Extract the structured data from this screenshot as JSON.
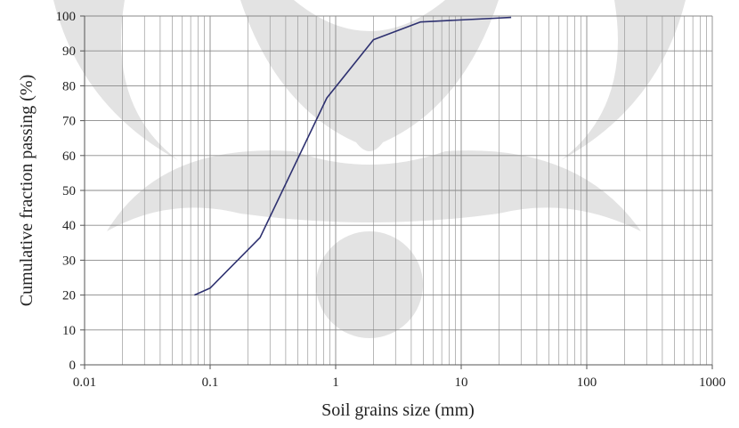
{
  "chart_data": {
    "type": "line",
    "x_label": "Soil grains size (mm)",
    "y_label": "Cumulative fraction passing (%)",
    "x_scale": "log",
    "grid": true,
    "minor_grid": true,
    "xlim": [
      0.01,
      1000
    ],
    "ylim": [
      0,
      100
    ],
    "xticks": [
      0.01,
      0.1,
      1,
      10,
      100,
      1000
    ],
    "yticks": [
      0,
      10,
      20,
      30,
      40,
      50,
      60,
      70,
      80,
      90,
      100
    ],
    "series": [
      {
        "color": "#2e3170",
        "x": [
          0.075,
          0.1,
          0.25,
          0.85,
          2,
          4.75,
          25
        ],
        "values": [
          20,
          22,
          36.5,
          76.5,
          93.2,
          98.3,
          99.6
        ]
      }
    ]
  }
}
